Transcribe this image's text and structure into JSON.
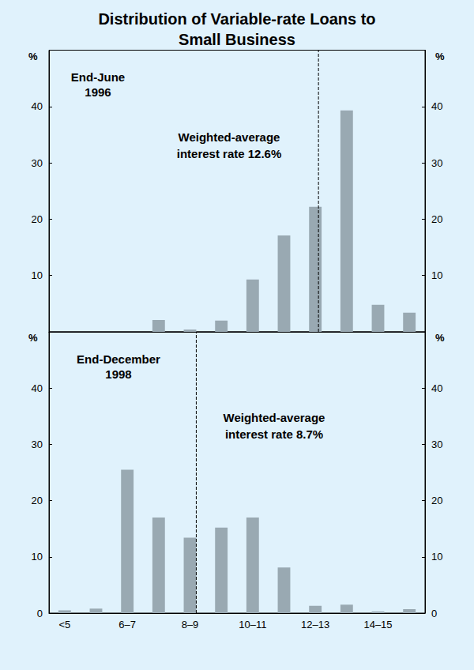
{
  "title": "Distribution of Variable-rate Loans to\nSmall Business",
  "chart_data": [
    {
      "type": "bar",
      "subtitle": "End-June\n1996",
      "categories": [
        "<5",
        null,
        "6–7",
        null,
        "8–9",
        null,
        "10–11",
        null,
        "12–13",
        null,
        "14–15",
        null
      ],
      "bins": [
        4,
        5,
        6,
        7,
        8,
        9,
        10,
        11,
        12,
        13,
        14,
        15,
        16
      ],
      "values": [
        0,
        0,
        0,
        2.1,
        0.4,
        2.0,
        9.3,
        17.1,
        22.2,
        39.3,
        4.8,
        3.4
      ],
      "color": "#99a9b2",
      "ylabel": "%",
      "ylim": [
        0,
        50
      ],
      "yticks": [
        10,
        20,
        30,
        40
      ],
      "grid": false,
      "tick_labels": "y",
      "annotation": "Weighted-average\ninterest rate 12.6%",
      "weighted_average": 12.6
    },
    {
      "type": "bar",
      "subtitle": "End-December\n1998",
      "categories": [
        "<5",
        null,
        "6–7",
        null,
        "8–9",
        null,
        "10–11",
        null,
        "12–13",
        null,
        "14–15",
        null
      ],
      "bins": [
        4,
        5,
        6,
        7,
        8,
        9,
        10,
        11,
        12,
        13,
        14,
        15,
        16
      ],
      "values": [
        0.5,
        0.8,
        25.5,
        17.0,
        13.4,
        15.2,
        17.0,
        8.1,
        1.3,
        1.5,
        0.3,
        0.7
      ],
      "color": "#99a9b2",
      "ylabel": "%",
      "ylim": [
        0,
        50
      ],
      "yticks": [
        0,
        10,
        20,
        30,
        40
      ],
      "grid": false,
      "annotation": "Weighted-average\ninterest rate 8.7%",
      "weighted_average": 8.7
    }
  ]
}
